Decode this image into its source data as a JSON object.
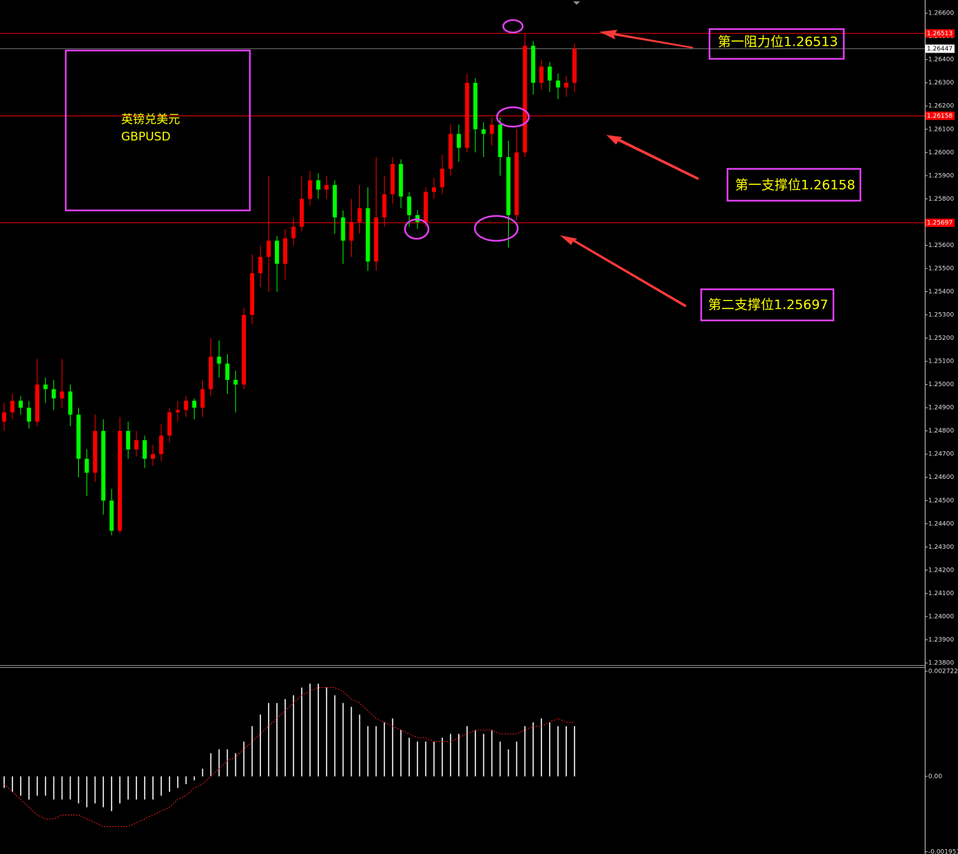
{
  "chart_data": [
    {
      "type": "candlestick",
      "ylim": [
        1.23794,
        1.26657
      ],
      "yticks": [
        {
          "value": 1.266,
          "label": "1.26600"
        },
        {
          "value": 1.265,
          "label": "1.26500"
        },
        {
          "value": 1.264,
          "label": "1.26400"
        },
        {
          "value": 1.263,
          "label": "1.26300"
        },
        {
          "value": 1.262,
          "label": "1.26200"
        },
        {
          "value": 1.261,
          "label": "1.26100"
        },
        {
          "value": 1.26,
          "label": "1.26000"
        },
        {
          "value": 1.259,
          "label": "1.25900"
        },
        {
          "value": 1.258,
          "label": "1.25800"
        },
        {
          "value": 1.256,
          "label": "1.25600"
        },
        {
          "value": 1.255,
          "label": "1.25500"
        },
        {
          "value": 1.254,
          "label": "1.25400"
        },
        {
          "value": 1.253,
          "label": "1.25300"
        },
        {
          "value": 1.252,
          "label": "1.25200"
        },
        {
          "value": 1.251,
          "label": "1.25100"
        },
        {
          "value": 1.25,
          "label": "1.25000"
        },
        {
          "value": 1.249,
          "label": "1.24900"
        },
        {
          "value": 1.248,
          "label": "1.24800"
        },
        {
          "value": 1.247,
          "label": "1.24700"
        },
        {
          "value": 1.246,
          "label": "1.24600"
        },
        {
          "value": 1.245,
          "label": "1.24500"
        },
        {
          "value": 1.244,
          "label": "1.24400"
        },
        {
          "value": 1.243,
          "label": "1.24300"
        },
        {
          "value": 1.242,
          "label": "1.24200"
        },
        {
          "value": 1.241,
          "label": "1.24100"
        },
        {
          "value": 1.24,
          "label": "1.24000"
        },
        {
          "value": 1.239,
          "label": "1.23900"
        },
        {
          "value": 1.238,
          "label": "1.23800"
        }
      ],
      "up_color": "#ff0000",
      "down_color": "#00ff00",
      "open": [
        1.2484,
        1.2488,
        1.2493,
        1.249,
        1.2484,
        1.25,
        1.2498,
        1.2494,
        1.2497,
        1.2487,
        1.2468,
        1.2462,
        1.248,
        1.245,
        1.2437,
        1.248,
        1.2472,
        1.2476,
        1.2468,
        1.247,
        1.2478,
        1.2488,
        1.2489,
        1.2493,
        1.249,
        1.2498,
        1.2512,
        1.2509,
        1.2502,
        1.25,
        1.253,
        1.2548,
        1.2555,
        1.2562,
        1.2552,
        1.2563,
        1.2568,
        1.258,
        1.2588,
        1.2584,
        1.2586,
        1.2572,
        1.2562,
        1.257,
        1.2576,
        1.2553,
        1.2572,
        1.2582,
        1.2595,
        1.2581,
        1.2573,
        1.257,
        1.2583,
        1.2585,
        1.2593,
        1.2608,
        1.2602,
        1.263,
        1.261,
        1.2608,
        1.2612,
        1.2598,
        1.2573,
        1.26,
        1.2646,
        1.263,
        1.2637,
        1.2631,
        1.2628,
        1.263
      ],
      "high": [
        1.2492,
        1.2496,
        1.2495,
        1.2493,
        1.2511,
        1.2503,
        1.2502,
        1.2511,
        1.25,
        1.249,
        1.2472,
        1.2487,
        1.2485,
        1.2455,
        1.2486,
        1.2484,
        1.248,
        1.2478,
        1.2474,
        1.2483,
        1.249,
        1.2493,
        1.2495,
        1.2494,
        1.2502,
        1.252,
        1.2519,
        1.2513,
        1.2506,
        1.2533,
        1.2556,
        1.256,
        1.259,
        1.2564,
        1.2567,
        1.2572,
        1.259,
        1.2592,
        1.2591,
        1.259,
        1.2588,
        1.2575,
        1.258,
        1.2586,
        1.2585,
        1.2598,
        1.259,
        1.2598,
        1.2597,
        1.2583,
        1.2575,
        1.2585,
        1.2589,
        1.2599,
        1.2612,
        1.2612,
        1.2634,
        1.2632,
        1.2613,
        1.2615,
        1.2615,
        1.2605,
        1.261,
        1.2651,
        1.2648,
        1.264,
        1.2639,
        1.2634,
        1.2633,
        1.2647
      ],
      "low": [
        1.248,
        1.2485,
        1.2487,
        1.2481,
        1.2482,
        1.2492,
        1.2489,
        1.249,
        1.2482,
        1.246,
        1.2452,
        1.2458,
        1.2444,
        1.2435,
        1.2436,
        1.2468,
        1.2469,
        1.2464,
        1.2465,
        1.2467,
        1.2475,
        1.2484,
        1.2486,
        1.2485,
        1.2486,
        1.2495,
        1.2503,
        1.2496,
        1.2488,
        1.2498,
        1.2526,
        1.2542,
        1.254,
        1.254,
        1.2545,
        1.256,
        1.2566,
        1.2577,
        1.258,
        1.258,
        1.2565,
        1.2552,
        1.2555,
        1.2565,
        1.2549,
        1.2549,
        1.2568,
        1.2578,
        1.2576,
        1.2568,
        1.2567,
        1.2568,
        1.258,
        1.2582,
        1.259,
        1.2596,
        1.26,
        1.26,
        1.2598,
        1.2603,
        1.259,
        1.2559,
        1.2571,
        1.2598,
        1.2625,
        1.2627,
        1.2626,
        1.2623,
        1.2624,
        1.2626
      ],
      "close": [
        1.2488,
        1.2493,
        1.249,
        1.2484,
        1.25,
        1.2498,
        1.2494,
        1.2497,
        1.2487,
        1.2468,
        1.2462,
        1.248,
        1.245,
        1.2437,
        1.248,
        1.2472,
        1.2476,
        1.2468,
        1.247,
        1.2478,
        1.2488,
        1.2489,
        1.2493,
        1.249,
        1.2498,
        1.2512,
        1.2509,
        1.2502,
        1.25,
        1.253,
        1.2548,
        1.2555,
        1.2562,
        1.2552,
        1.2563,
        1.2568,
        1.258,
        1.2588,
        1.2584,
        1.2586,
        1.2572,
        1.2562,
        1.257,
        1.2576,
        1.2553,
        1.2572,
        1.2582,
        1.2595,
        1.2581,
        1.2573,
        1.257,
        1.2583,
        1.2585,
        1.2593,
        1.2608,
        1.2602,
        1.263,
        1.261,
        1.2608,
        1.2612,
        1.2598,
        1.2573,
        1.26,
        1.2646,
        1.263,
        1.2637,
        1.2631,
        1.2628,
        1.263,
        1.26447
      ],
      "levels": [
        {
          "value": 1.26513,
          "color": "#ff0000",
          "label_color": "#ff0000",
          "text_color": "#ffffff"
        },
        {
          "value": 1.26447,
          "color": "#7a7a7a",
          "label_color": "#ffffff",
          "text_color": "#000000"
        },
        {
          "value": 1.26158,
          "color": "#ff0000",
          "label_color": "#ff0000",
          "text_color": "#ffffff"
        },
        {
          "value": 1.25697,
          "color": "#ff0000",
          "label_color": "#ff0000",
          "text_color": "#ffffff"
        }
      ],
      "annotations": [
        "英镑兑美元",
        "GBPUSD",
        "第一阻力位1.26513",
        "第一支撑位1.26158",
        "第二支撑位1.25697"
      ]
    },
    {
      "type": "macd",
      "ylim": [
        -0.00201,
        0.00281
      ],
      "yticks": [
        {
          "value": 0.002722,
          "label": "0.002722"
        },
        {
          "value": 0,
          "label": "0.00"
        },
        {
          "value": -0.001953,
          "label": "-0.001953"
        }
      ],
      "histogram": {
        "color": "#ffffff",
        "values": [
          -0.0003,
          -0.0004,
          -0.0005,
          -0.0006,
          -0.0005,
          -0.0005,
          -0.0006,
          -0.0006,
          -0.0006,
          -0.0007,
          -0.0008,
          -0.0007,
          -0.0008,
          -0.0009,
          -0.0007,
          -0.0006,
          -0.0006,
          -0.0006,
          -0.0006,
          -0.0005,
          -0.0004,
          -0.0003,
          -0.0002,
          -0.0001,
          0.0002,
          0.0006,
          0.0007,
          0.0007,
          0.0006,
          0.0009,
          0.0013,
          0.0016,
          0.0019,
          0.0019,
          0.002,
          0.0021,
          0.0023,
          0.0024,
          0.0024,
          0.0023,
          0.0021,
          0.0019,
          0.0018,
          0.0016,
          0.0013,
          0.0013,
          0.0014,
          0.0015,
          0.0012,
          0.001,
          0.0009,
          0.0009,
          0.0009,
          0.001,
          0.0011,
          0.0011,
          0.0013,
          0.0012,
          0.0011,
          0.0012,
          0.0009,
          0.0007,
          0.0009,
          0.0013,
          0.0014,
          0.0015,
          0.0014,
          0.0013,
          0.0013,
          0.0013
        ]
      },
      "signal": {
        "color": "#ff2020",
        "values": [
          -0.0002,
          -0.0004,
          -0.0006,
          -0.0008,
          -0.001,
          -0.0011,
          -0.0011,
          -0.001,
          -0.001,
          -0.001,
          -0.0011,
          -0.0012,
          -0.0013,
          -0.0013,
          -0.0013,
          -0.0013,
          -0.0012,
          -0.0011,
          -0.001,
          -0.0009,
          -0.0008,
          -0.0006,
          -0.0005,
          -0.0003,
          -0.0002,
          0.0,
          0.0002,
          0.0004,
          0.0005,
          0.0007,
          0.0009,
          0.0011,
          0.0013,
          0.0015,
          0.0017,
          0.0019,
          0.0021,
          0.0022,
          0.0023,
          0.0023,
          0.0023,
          0.0022,
          0.002,
          0.0019,
          0.0017,
          0.0015,
          0.0014,
          0.0013,
          0.0012,
          0.0011,
          0.001,
          0.001,
          0.0009,
          0.0009,
          0.0009,
          0.001,
          0.0011,
          0.0012,
          0.0012,
          0.0012,
          0.0011,
          0.0011,
          0.0011,
          0.0012,
          0.0013,
          0.0013,
          0.0014,
          0.0015,
          0.0014,
          0.0014
        ]
      }
    }
  ]
}
